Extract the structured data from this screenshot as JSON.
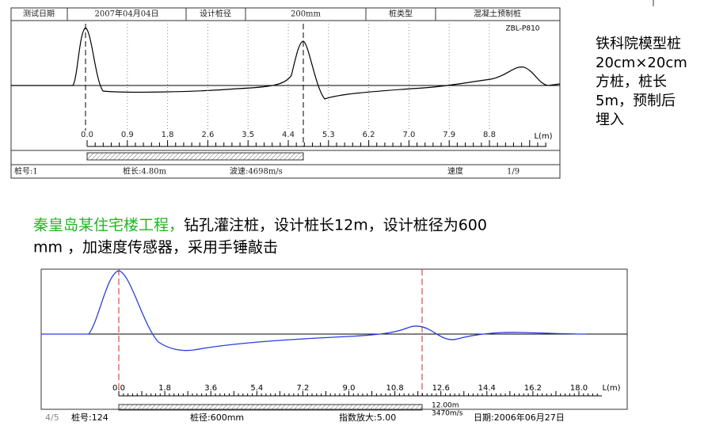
{
  "top_chart": {
    "header": [
      "测试日期",
      "2007年04月04日",
      "设计桩径",
      "200mm",
      "桩类型",
      "混凝土预制桩"
    ],
    "code": "ZBL-P810",
    "ticks": [
      "0.0",
      "0.9",
      "1.8",
      "2.6",
      "3.5",
      "4.4",
      "5.3",
      "6.2",
      "7.0",
      "7.9",
      "8.8"
    ],
    "axis_label": "L(m)",
    "footer": [
      "桩号:1",
      "桩长:4.80m",
      "波速:4698m/s",
      "速度",
      "1/9"
    ]
  },
  "note": [
    "铁科院模型桩",
    "20cm×20cm",
    "方桩，桩长",
    "5m，预制后",
    "埋入"
  ],
  "description": {
    "highlight": "秦皇岛某住宅楼工程，",
    "line1": "钻孔灌注桩，设计桩长12m，设计桩径为600",
    "line2": "mm ，加速度传感器，采用手锤敲击"
  },
  "bottom_chart": {
    "ticks": [
      "0.0",
      "1.8",
      "3.6",
      "5.4",
      "7.2",
      "9.0",
      "10.8",
      "12.6",
      "14.4",
      "16.2",
      "18.0"
    ],
    "axis_label": "L(m)",
    "page": "4/5",
    "footer": [
      "桩号:124",
      "桩径:600mm",
      "指数放大:5.00"
    ],
    "length": "12.00m",
    "speed": "3470m/s",
    "date": "日期:2006年06月27日"
  }
}
